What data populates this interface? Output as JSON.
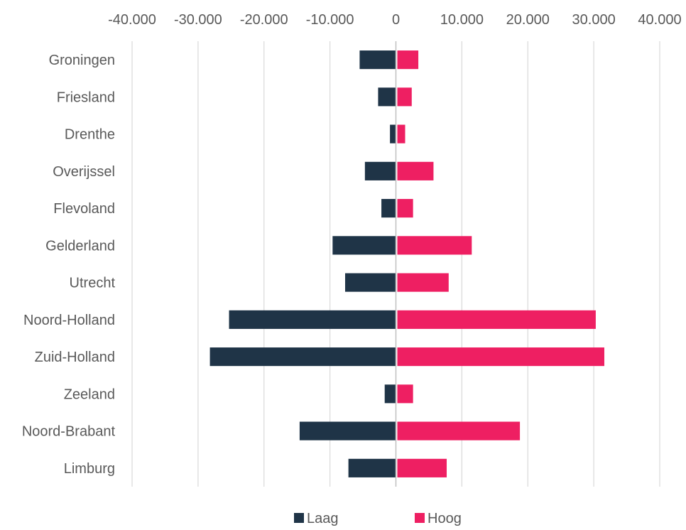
{
  "chart_data": {
    "type": "bar",
    "orientation": "horizontal",
    "layout": "diverging",
    "categories": [
      "Groningen",
      "Friesland",
      "Drenthe",
      "Overijssel",
      "Flevoland",
      "Gelderland",
      "Utrecht",
      "Noord-Holland",
      "Zuid-Holland",
      "Zeeland",
      "Noord-Brabant",
      "Limburg"
    ],
    "series": [
      {
        "name": "Laag",
        "color": "#1f3447",
        "values": [
          -5500,
          -2700,
          -900,
          -4700,
          -2200,
          -9600,
          -7700,
          -25300,
          -28200,
          -1700,
          -14600,
          -7200
        ]
      },
      {
        "name": "Hoog",
        "color": "#ee1f62",
        "values": [
          3400,
          2400,
          1400,
          5700,
          2600,
          11500,
          8000,
          30300,
          31600,
          2600,
          18800,
          7700
        ]
      }
    ],
    "xlim": [
      -40000,
      40000
    ],
    "x_ticks": [
      -40000,
      -30000,
      -20000,
      -10000,
      0,
      10000,
      20000,
      30000,
      40000
    ],
    "x_tick_labels": [
      "-40.000",
      "-30.000",
      "-20.000",
      "-10.000",
      "0",
      "10.000",
      "20.000",
      "30.000",
      "40.000"
    ],
    "x_axis_position": "top",
    "grid": true,
    "legend": "bottom",
    "title": "",
    "xlabel": "",
    "ylabel": ""
  }
}
